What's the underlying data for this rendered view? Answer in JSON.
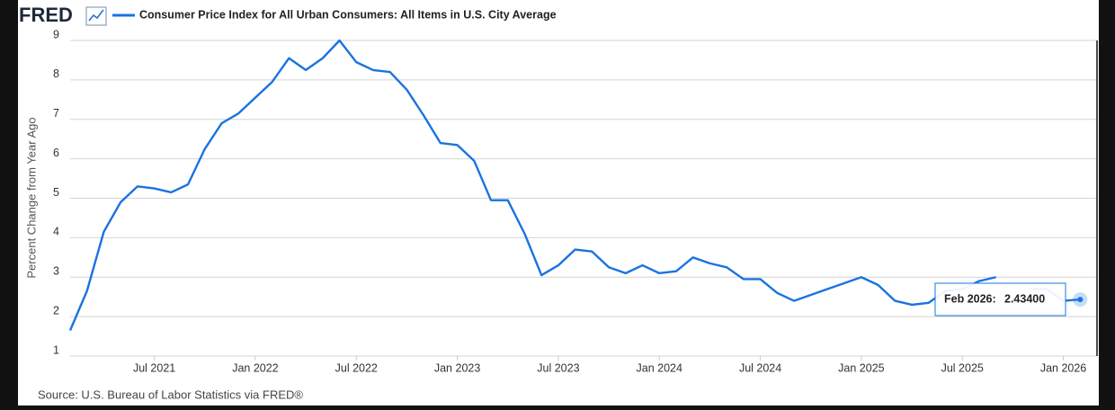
{
  "header": {
    "logo": "FRED"
  },
  "source": "Source: U.S. Bureau of Labor Statistics via FRED®",
  "chart_data": {
    "type": "line",
    "ylabel": "Percent Change from Year Ago",
    "x": [
      "2021-02",
      "2021-03",
      "2021-04",
      "2021-05",
      "2021-06",
      "2021-07",
      "2021-08",
      "2021-09",
      "2021-10",
      "2021-11",
      "2021-12",
      "2022-01",
      "2022-02",
      "2022-03",
      "2022-04",
      "2022-05",
      "2022-06",
      "2022-07",
      "2022-08",
      "2022-09",
      "2022-10",
      "2022-11",
      "2022-12",
      "2023-01",
      "2023-02",
      "2023-03",
      "2023-04",
      "2023-05",
      "2023-06",
      "2023-07",
      "2023-08",
      "2023-09",
      "2023-10",
      "2023-11",
      "2023-12",
      "2024-01",
      "2024-02",
      "2024-03",
      "2024-04",
      "2024-05",
      "2024-06",
      "2024-07",
      "2024-08",
      "2024-09",
      "2024-10",
      "2024-11",
      "2024-12",
      "2025-01",
      "2025-02",
      "2025-03",
      "2025-04",
      "2025-05",
      "2025-06",
      "2025-07",
      "2025-08",
      "2025-09",
      "2025-10",
      "2025-11",
      "2025-12",
      "2026-01",
      "2026-02"
    ],
    "series": [
      {
        "name": "Consumer Price Index for All Urban Consumers: All Items in U.S. City Average",
        "color": "#1a73e0",
        "values": [
          1.65,
          2.65,
          4.15,
          4.9,
          5.3,
          5.25,
          5.15,
          5.35,
          6.25,
          6.9,
          7.15,
          7.55,
          7.95,
          8.55,
          8.25,
          8.55,
          9.0,
          8.45,
          8.25,
          8.2,
          7.75,
          7.1,
          6.4,
          6.35,
          5.95,
          4.95,
          4.95,
          4.1,
          3.05,
          3.3,
          3.7,
          3.65,
          3.25,
          3.1,
          3.3,
          3.1,
          3.15,
          3.5,
          3.35,
          3.25,
          2.95,
          2.95,
          2.6,
          2.4,
          2.55,
          2.7,
          2.85,
          3.0,
          2.8,
          2.4,
          2.3,
          2.35,
          2.65,
          2.7,
          2.9,
          3.0,
          null,
          2.7,
          2.7,
          2.4,
          2.434
        ]
      }
    ],
    "ylim": [
      1,
      9
    ],
    "yticks": [
      1,
      2,
      3,
      4,
      5,
      6,
      7,
      8,
      9
    ],
    "xlim": [
      "2021-02",
      "2026-03"
    ],
    "xticks": [
      {
        "value": "2021-07",
        "label": "Jul 2021"
      },
      {
        "value": "2022-01",
        "label": "Jan 2022"
      },
      {
        "value": "2022-07",
        "label": "Jul 2022"
      },
      {
        "value": "2023-01",
        "label": "Jan 2023"
      },
      {
        "value": "2023-07",
        "label": "Jul 2023"
      },
      {
        "value": "2024-01",
        "label": "Jan 2024"
      },
      {
        "value": "2024-07",
        "label": "Jul 2024"
      },
      {
        "value": "2025-01",
        "label": "Jan 2025"
      },
      {
        "value": "2025-07",
        "label": "Jul 2025"
      },
      {
        "value": "2026-01",
        "label": "Jan 2026"
      }
    ],
    "grid": true,
    "tooltip": {
      "label": "Feb 2026:",
      "value": "2.43400"
    }
  }
}
